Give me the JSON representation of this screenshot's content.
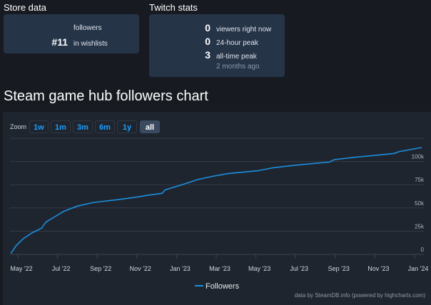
{
  "store": {
    "heading": "Store data",
    "followers_value": "",
    "followers_label": "followers",
    "wishlist_rank": "#11",
    "wishlist_label": "in wishlists"
  },
  "twitch": {
    "heading": "Twitch stats",
    "rows": [
      {
        "value": "0",
        "label": "viewers right now"
      },
      {
        "value": "0",
        "label": "24-hour peak"
      },
      {
        "value": "3",
        "label": "all-time peak"
      }
    ],
    "peak_time": "2 months ago"
  },
  "zoom": {
    "label": "Zoom",
    "buttons": [
      "1w",
      "1m",
      "3m",
      "6m",
      "1y",
      "all"
    ],
    "active": "all"
  },
  "credit": "data by SteamDB.info (powered by highcharts.com)",
  "chart_data": {
    "type": "line",
    "title": "Steam game hub followers chart",
    "xlabel": "",
    "ylabel": "",
    "x_unit": "months since May 2022",
    "xticks": [
      {
        "v": 0,
        "label": "May '22"
      },
      {
        "v": 2,
        "label": "Jul '22"
      },
      {
        "v": 4,
        "label": "Sep '22"
      },
      {
        "v": 6,
        "label": "Nov '22"
      },
      {
        "v": 8,
        "label": "Jan '23"
      },
      {
        "v": 10,
        "label": "Mar '23"
      },
      {
        "v": 12,
        "label": "May '23"
      },
      {
        "v": 14,
        "label": "Jul '23"
      },
      {
        "v": 16,
        "label": "Sep '23"
      },
      {
        "v": 18,
        "label": "Nov '23"
      },
      {
        "v": 20,
        "label": "Jan '24"
      }
    ],
    "yticks": [
      {
        "v": 0,
        "label": "0"
      },
      {
        "v": 25000,
        "label": "25k"
      },
      {
        "v": 50000,
        "label": "50k"
      },
      {
        "v": 75000,
        "label": "75k"
      },
      {
        "v": 100000,
        "label": "100k"
      },
      {
        "v": 125000,
        "label": ""
      }
    ],
    "ylim": [
      0,
      125000
    ],
    "xlim": [
      -0.4,
      20.5
    ],
    "grid": true,
    "legend": "bottom-center",
    "color": "#1a8fe0",
    "series": [
      {
        "name": "Followers",
        "points": [
          [
            -0.35,
            1000
          ],
          [
            -0.1,
            9000
          ],
          [
            0.26,
            16700
          ],
          [
            0.7,
            23000
          ],
          [
            1.22,
            28500
          ],
          [
            1.3,
            31500
          ],
          [
            1.43,
            35000
          ],
          [
            1.9,
            41000
          ],
          [
            2.33,
            46500
          ],
          [
            3.0,
            52000
          ],
          [
            3.84,
            56000
          ],
          [
            5.0,
            58800
          ],
          [
            5.9,
            61400
          ],
          [
            6.6,
            63800
          ],
          [
            7.28,
            65800
          ],
          [
            7.42,
            69400
          ],
          [
            8.2,
            74500
          ],
          [
            9.07,
            80500
          ],
          [
            9.8,
            84000
          ],
          [
            10.6,
            87000
          ],
          [
            12.1,
            90000
          ],
          [
            12.9,
            93300
          ],
          [
            14.0,
            96000
          ],
          [
            15.0,
            98000
          ],
          [
            15.7,
            99300
          ],
          [
            15.95,
            102000
          ],
          [
            17.0,
            104500
          ],
          [
            18.0,
            106500
          ],
          [
            18.98,
            108700
          ],
          [
            19.2,
            110500
          ],
          [
            20.36,
            115000
          ]
        ]
      }
    ]
  }
}
